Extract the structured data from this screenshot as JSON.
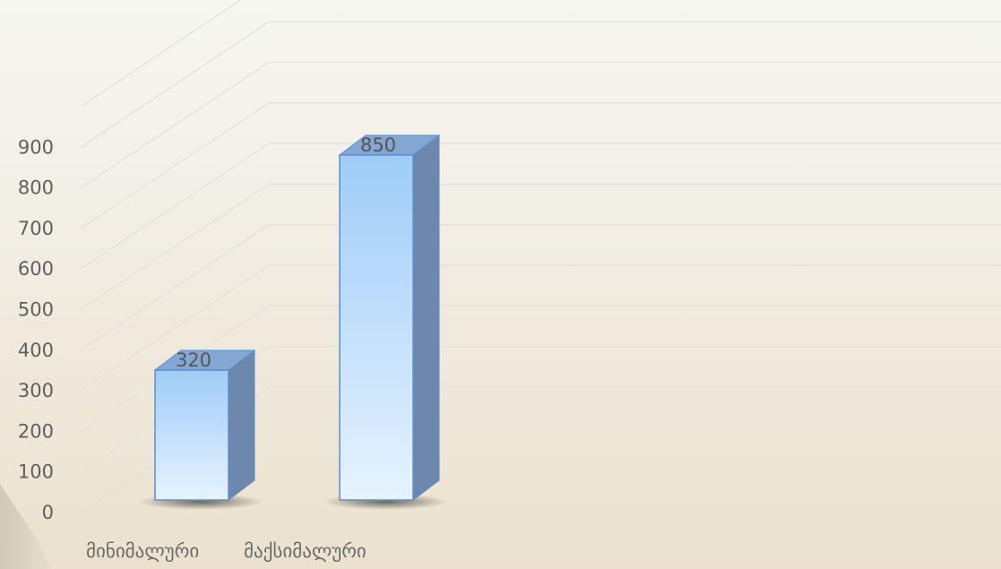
{
  "chart_data": {
    "type": "bar",
    "style": "3d-column",
    "categories": [
      "მინიმალური",
      "მაქსიმალური"
    ],
    "values": [
      320,
      850
    ],
    "data_labels": [
      "320",
      "850"
    ],
    "ylim": [
      0,
      900
    ],
    "yticks": [
      0,
      100,
      200,
      300,
      400,
      500,
      600,
      700,
      800,
      900
    ],
    "ytick_labels": [
      "0",
      "100",
      "200",
      "300",
      "400",
      "500",
      "600",
      "700",
      "800",
      "900"
    ],
    "grid": true,
    "legend": "none",
    "colors": {
      "bar_front_top": "#9fccf7",
      "bar_front_bottom": "#e6f3ff",
      "bar_side": "#6d87ad",
      "bar_top": "#83a6d2",
      "bar_outline": "#5b8ed3",
      "grid": "#e2e2dc",
      "text": "#606060"
    }
  }
}
